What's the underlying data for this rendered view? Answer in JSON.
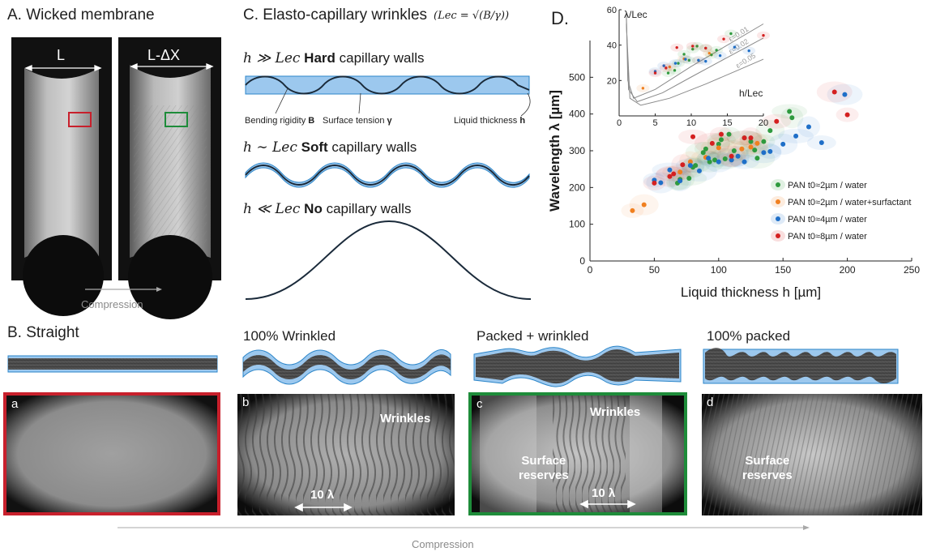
{
  "panelA": {
    "title": "A. Wicked membrane",
    "label_left": "L",
    "label_right": "L-ΔX",
    "arrow_label": "Compression"
  },
  "panelB": {
    "title": "B. Straight",
    "states": [
      "100% Wrinkled",
      "Packed + wrinkled",
      "100% packed"
    ],
    "photos": [
      {
        "id": "a",
        "border": "#c8202c"
      },
      {
        "id": "b",
        "border": ""
      },
      {
        "id": "c",
        "border": "#1e8c3a"
      },
      {
        "id": "d",
        "border": ""
      }
    ],
    "wrinkles_label": "Wrinkles",
    "reserves_label_1": "Surface",
    "reserves_label_2": "reserves",
    "scale_label": "10 λ",
    "arrow_label": "Compression"
  },
  "panelC": {
    "title": "C. Elasto-capillary wrinkles",
    "formula": "(Lec = √(B/γ))",
    "rows": [
      {
        "cond": "h ≫ Lec",
        "bold": "Hard",
        "rest": "capillary walls"
      },
      {
        "cond": "h ∼ Lec",
        "bold": "Soft",
        "rest": "capillary walls"
      },
      {
        "cond": "h ≪ Lec",
        "bold": "No",
        "rest": "capillary walls"
      }
    ],
    "annotations": {
      "bending": "Bending rigidity",
      "bending_sym": "B",
      "tension": "Surface tension",
      "tension_sym": "γ",
      "thickness": "Liquid thickness",
      "thickness_sym": "h"
    },
    "colors": {
      "liquid": "#9cc8ee",
      "edge": "#2d86c9",
      "sheet": "#1a2a3a"
    }
  },
  "panelD": {
    "title": "D."
  },
  "chart_data": [
    {
      "type": "scatter",
      "title": "",
      "xlabel": "Liquid thickness h [µm]",
      "ylabel": "Wavelength λ [µm]",
      "xlim": [
        0,
        250
      ],
      "ylim": [
        0,
        600
      ],
      "xticks": [
        "0",
        "50",
        "100",
        "150",
        "200",
        "250"
      ],
      "yticks": [
        "0",
        "100",
        "200",
        "300",
        "400",
        "500"
      ],
      "legend_position": "bottom-right",
      "series": [
        {
          "name": "PAN t0≈2µm / water",
          "color": "#2e9a3e",
          "points": [
            [
              68,
              212
            ],
            [
              70,
              222
            ],
            [
              77,
              225
            ],
            [
              80,
              255
            ],
            [
              82,
              260
            ],
            [
              88,
              295
            ],
            [
              90,
              305
            ],
            [
              93,
              270
            ],
            [
              97,
              275
            ],
            [
              100,
              318
            ],
            [
              102,
              330
            ],
            [
              105,
              278
            ],
            [
              108,
              345
            ],
            [
              112,
              300
            ],
            [
              120,
              335
            ],
            [
              125,
              325
            ],
            [
              128,
              302
            ],
            [
              130,
              280
            ],
            [
              135,
              325
            ],
            [
              140,
              355
            ],
            [
              155,
              407
            ],
            [
              157,
              390
            ]
          ]
        },
        {
          "name": "PAN t0≈2µm / water+surfactant",
          "color": "#f08020",
          "points": [
            [
              33,
              137
            ],
            [
              42,
              153
            ],
            [
              70,
              242
            ],
            [
              78,
              270
            ],
            [
              90,
              282
            ],
            [
              100,
              308
            ],
            [
              110,
              275
            ],
            [
              118,
              305
            ],
            [
              125,
              310
            ],
            [
              130,
              320
            ]
          ]
        },
        {
          "name": "PAN t0≈4µm / water",
          "color": "#1f6fc8",
          "points": [
            [
              50,
              220
            ],
            [
              55,
              213
            ],
            [
              62,
              248
            ],
            [
              70,
              218
            ],
            [
              78,
              260
            ],
            [
              85,
              245
            ],
            [
              92,
              280
            ],
            [
              100,
              270
            ],
            [
              110,
              275
            ],
            [
              115,
              285
            ],
            [
              120,
              270
            ],
            [
              135,
              295
            ],
            [
              140,
              298
            ],
            [
              150,
              318
            ],
            [
              160,
              340
            ],
            [
              170,
              365
            ],
            [
              180,
              322
            ],
            [
              198,
              453
            ]
          ]
        },
        {
          "name": "PAN t0≈8µm / water",
          "color": "#d42020",
          "points": [
            [
              50,
              212
            ],
            [
              62,
              230
            ],
            [
              65,
              237
            ],
            [
              72,
              262
            ],
            [
              80,
              338
            ],
            [
              95,
              320
            ],
            [
              102,
              345
            ],
            [
              110,
              285
            ],
            [
              120,
              335
            ],
            [
              125,
              335
            ],
            [
              145,
              380
            ],
            [
              190,
              460
            ],
            [
              200,
              398
            ]
          ]
        }
      ]
    },
    {
      "type": "line",
      "title": "",
      "xlabel": "h/Lec",
      "ylabel": "λ/Lec",
      "xlim": [
        0,
        20
      ],
      "ylim": [
        0,
        60
      ],
      "xticks": [
        "0",
        "5",
        "10",
        "15",
        "20"
      ],
      "yticks": [
        "20",
        "40",
        "60"
      ],
      "curve_labels": [
        "ε=0.01",
        "ε=0.02",
        "ε=0.05"
      ]
    }
  ]
}
